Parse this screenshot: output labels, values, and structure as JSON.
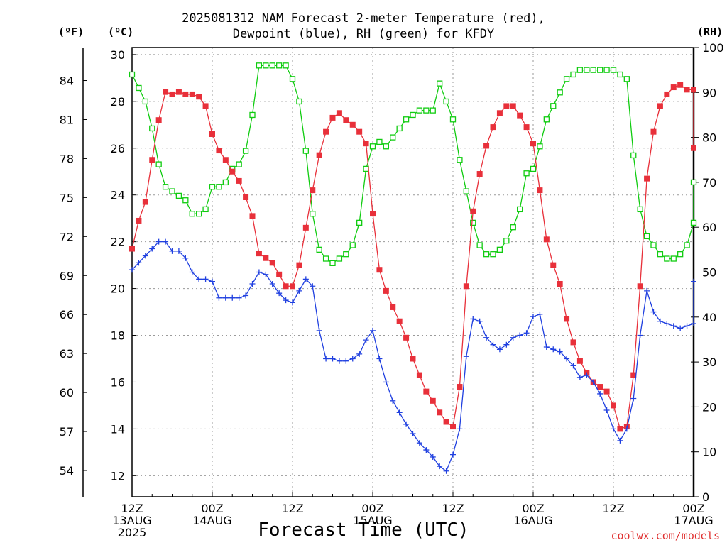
{
  "title_line1": "2025081312 NAM Forecast 2-meter Temperature (red),",
  "title_line2": "Dewpoint (blue), RH (green) for KFDY",
  "unit_f": "(ºF)",
  "unit_c": "(ºC)",
  "unit_rh": "(RH)",
  "xaxis_label": "Forecast Time (UTC)",
  "credit": "coolwx.com/models",
  "colors": {
    "temperature": "#e8303a",
    "dewpoint": "#2040e0",
    "rh": "#10cc10",
    "credit": "#e03030"
  },
  "chart_data": {
    "type": "line",
    "title": "2025081312 NAM Forecast 2-meter Temperature (red), Dewpoint (blue), RH (green) for KFDY",
    "xlabel": "Forecast Time (UTC)",
    "x_hours": [
      0,
      1,
      2,
      3,
      4,
      5,
      6,
      7,
      8,
      9,
      10,
      11,
      12,
      13,
      14,
      15,
      16,
      17,
      18,
      19,
      20,
      21,
      22,
      23,
      24,
      25,
      26,
      27,
      28,
      29,
      30,
      31,
      32,
      33,
      34,
      35,
      36,
      37,
      38,
      39,
      40,
      41,
      42,
      43,
      44,
      45,
      46,
      47,
      48,
      49,
      50,
      51,
      52,
      53,
      54,
      55,
      56,
      57,
      58,
      59,
      60,
      61,
      62,
      63,
      64,
      65,
      66,
      67,
      68,
      69,
      70,
      71,
      72,
      73,
      74,
      75,
      76,
      77,
      78,
      79,
      80,
      81,
      82,
      83,
      84
    ],
    "x_ticks": [
      {
        "hour": 0,
        "line1": "12Z",
        "line2": "13AUG",
        "line3": "2025"
      },
      {
        "hour": 12,
        "line1": "00Z",
        "line2": "14AUG",
        "line3": ""
      },
      {
        "hour": 24,
        "line1": "12Z",
        "line2": "",
        "line3": ""
      },
      {
        "hour": 36,
        "line1": "00Z",
        "line2": "15AUG",
        "line3": ""
      },
      {
        "hour": 48,
        "line1": "12Z",
        "line2": "",
        "line3": ""
      },
      {
        "hour": 60,
        "line1": "00Z",
        "line2": "16AUG",
        "line3": ""
      },
      {
        "hour": 72,
        "line1": "12Z",
        "line2": "",
        "line3": ""
      },
      {
        "hour": 84,
        "line1": "00Z",
        "line2": "17AUG",
        "line3": ""
      }
    ],
    "y_celsius_ticks": [
      12,
      14,
      16,
      18,
      20,
      22,
      24,
      26,
      28,
      30
    ],
    "y_fahrenheit_ticks": [
      54,
      57,
      60,
      63,
      66,
      69,
      72,
      75,
      78,
      81,
      84
    ],
    "y_rh_ticks": [
      0,
      10,
      20,
      30,
      40,
      50,
      60,
      70,
      80,
      90,
      100
    ],
    "ylim_celsius": [
      11.1,
      30.3
    ],
    "ylim_rh": [
      0,
      100
    ],
    "grid": true,
    "series": [
      {
        "name": "Temperature",
        "units": "C",
        "values": [
          21.7,
          22.9,
          23.7,
          25.5,
          27.2,
          28.4,
          28.3,
          28.4,
          28.3,
          28.3,
          28.2,
          27.8,
          26.6,
          25.9,
          25.5,
          25.0,
          24.6,
          23.9,
          23.1,
          21.5,
          21.3,
          21.1,
          20.6,
          20.1,
          20.1,
          21.0,
          22.6,
          24.2,
          25.7,
          26.7,
          27.3,
          27.5,
          27.2,
          27.0,
          26.7,
          26.2,
          23.2,
          20.8,
          19.9,
          19.2,
          18.6,
          17.9,
          17.0,
          16.3,
          15.6,
          15.2,
          14.7,
          14.3,
          14.1,
          15.8,
          20.1,
          23.3,
          24.9,
          26.1,
          26.9,
          27.5,
          27.8,
          27.8,
          27.4,
          26.9,
          26.2,
          24.2,
          22.1,
          21.0,
          20.2,
          18.7,
          17.7,
          16.9,
          16.4,
          16.0,
          15.8,
          15.6,
          15.0,
          14.0,
          14.1,
          16.3,
          20.1,
          24.7,
          26.7,
          27.8,
          28.3,
          28.6,
          28.7,
          28.5,
          28.5
        ],
        "extra_last_point": 26.0
      },
      {
        "name": "Dewpoint",
        "units": "C",
        "values": [
          20.8,
          21.1,
          21.4,
          21.7,
          22.0,
          22.0,
          21.6,
          21.6,
          21.3,
          20.7,
          20.4,
          20.4,
          20.3,
          19.6,
          19.6,
          19.6,
          19.6,
          19.7,
          20.2,
          20.7,
          20.6,
          20.2,
          19.8,
          19.5,
          19.4,
          19.9,
          20.4,
          20.1,
          18.2,
          17.0,
          17.0,
          16.9,
          16.9,
          17.0,
          17.2,
          17.8,
          18.2,
          17.0,
          16.0,
          15.2,
          14.7,
          14.2,
          13.8,
          13.4,
          13.1,
          12.8,
          12.4,
          12.2,
          12.9,
          14.0,
          17.1,
          18.7,
          18.6,
          17.9,
          17.6,
          17.4,
          17.6,
          17.9,
          18.0,
          18.1,
          18.8,
          18.9,
          17.5,
          17.4,
          17.3,
          17.0,
          16.7,
          16.2,
          16.3,
          16.0,
          15.5,
          14.8,
          14.0,
          13.5,
          14.0,
          15.3,
          18.0,
          19.9,
          19.0,
          18.6,
          18.5,
          18.4,
          18.3,
          18.4,
          18.5
        ],
        "extra_last_point": 20.3
      },
      {
        "name": "RH",
        "units": "%",
        "values": [
          94,
          91,
          88,
          82,
          74,
          69,
          68,
          67,
          66,
          63,
          63,
          64,
          69,
          69,
          70,
          73,
          74,
          77,
          85,
          96,
          96,
          96,
          96,
          96,
          93,
          88,
          77,
          63,
          55,
          53,
          52,
          53,
          54,
          56,
          61,
          73,
          78,
          79,
          78,
          80,
          82,
          84,
          85,
          86,
          86,
          86,
          92,
          88,
          84,
          75,
          68,
          61,
          56,
          54,
          54,
          55,
          57,
          60,
          64,
          72,
          73,
          78,
          84,
          87,
          90,
          93,
          94,
          95,
          95,
          95,
          95,
          95,
          95,
          94,
          93,
          76,
          64,
          58,
          56,
          54,
          53,
          53,
          54,
          56,
          61
        ],
        "extra_last_point": 70
      }
    ]
  }
}
